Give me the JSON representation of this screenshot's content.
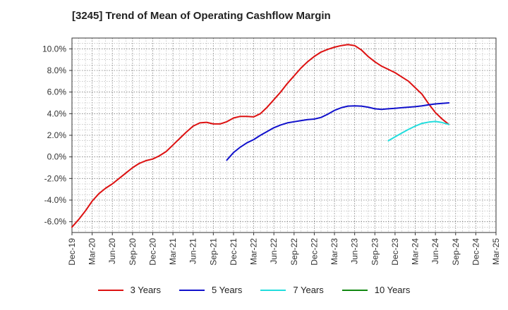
{
  "chart_data": {
    "type": "line",
    "title": "[3245]  Trend of Mean of Operating Cashflow Margin",
    "xlabel": "",
    "ylabel": "",
    "ylim": [
      -7,
      11
    ],
    "y_ticks": [
      -6,
      -4,
      -2,
      0,
      2,
      4,
      6,
      8,
      10
    ],
    "y_tick_labels": [
      "-6.0%",
      "-4.0%",
      "-2.0%",
      "0.0%",
      "2.0%",
      "4.0%",
      "6.0%",
      "8.0%",
      "10.0%"
    ],
    "x_tick_labels": [
      "Dec-19",
      "Mar-20",
      "Jun-20",
      "Sep-20",
      "Dec-20",
      "Mar-21",
      "Jun-21",
      "Sep-21",
      "Dec-21",
      "Mar-22",
      "Jun-22",
      "Sep-22",
      "Dec-22",
      "Mar-23",
      "Jun-23",
      "Sep-23",
      "Dec-23",
      "Mar-24",
      "Jun-24",
      "Sep-24",
      "Dec-24",
      "Mar-25"
    ],
    "grid": true,
    "legend_position": "bottom",
    "series": [
      {
        "name": "3 Years",
        "color": "#dd1111",
        "points": [
          [
            "Dec-19",
            -6.5
          ],
          [
            "Jan-20",
            -5.8
          ],
          [
            "Feb-20",
            -5.0
          ],
          [
            "Mar-20",
            -4.1
          ],
          [
            "Apr-20",
            -3.4
          ],
          [
            "May-20",
            -2.9
          ],
          [
            "Jun-20",
            -2.5
          ],
          [
            "Jul-20",
            -2.0
          ],
          [
            "Aug-20",
            -1.5
          ],
          [
            "Sep-20",
            -1.0
          ],
          [
            "Oct-20",
            -0.6
          ],
          [
            "Nov-20",
            -0.35
          ],
          [
            "Dec-20",
            -0.2
          ],
          [
            "Jan-21",
            0.1
          ],
          [
            "Feb-21",
            0.5
          ],
          [
            "Mar-21",
            1.1
          ],
          [
            "Apr-21",
            1.7
          ],
          [
            "May-21",
            2.3
          ],
          [
            "Jun-21",
            2.85
          ],
          [
            "Jul-21",
            3.15
          ],
          [
            "Aug-21",
            3.2
          ],
          [
            "Sep-21",
            3.05
          ],
          [
            "Oct-21",
            3.05
          ],
          [
            "Nov-21",
            3.25
          ],
          [
            "Dec-21",
            3.6
          ],
          [
            "Jan-22",
            3.75
          ],
          [
            "Feb-22",
            3.75
          ],
          [
            "Mar-22",
            3.7
          ],
          [
            "Apr-22",
            4.0
          ],
          [
            "May-22",
            4.6
          ],
          [
            "Jun-22",
            5.3
          ],
          [
            "Jul-22",
            6.0
          ],
          [
            "Aug-22",
            6.8
          ],
          [
            "Sep-22",
            7.5
          ],
          [
            "Oct-22",
            8.2
          ],
          [
            "Nov-22",
            8.8
          ],
          [
            "Dec-22",
            9.3
          ],
          [
            "Jan-23",
            9.7
          ],
          [
            "Feb-23",
            9.95
          ],
          [
            "Mar-23",
            10.15
          ],
          [
            "Apr-23",
            10.3
          ],
          [
            "May-23",
            10.4
          ],
          [
            "Jun-23",
            10.3
          ],
          [
            "Jul-23",
            9.9
          ],
          [
            "Aug-23",
            9.3
          ],
          [
            "Sep-23",
            8.8
          ],
          [
            "Oct-23",
            8.4
          ],
          [
            "Nov-23",
            8.1
          ],
          [
            "Dec-23",
            7.8
          ],
          [
            "Jan-24",
            7.4
          ],
          [
            "Feb-24",
            7.0
          ],
          [
            "Mar-24",
            6.4
          ],
          [
            "Apr-24",
            5.8
          ],
          [
            "May-24",
            4.9
          ],
          [
            "Jun-24",
            4.1
          ],
          [
            "Jul-24",
            3.5
          ],
          [
            "Aug-24",
            3.0
          ]
        ]
      },
      {
        "name": "5 Years",
        "color": "#1111cc",
        "points": [
          [
            "Nov-21",
            -0.3
          ],
          [
            "Dec-21",
            0.4
          ],
          [
            "Jan-22",
            0.9
          ],
          [
            "Feb-22",
            1.3
          ],
          [
            "Mar-22",
            1.6
          ],
          [
            "Apr-22",
            2.0
          ],
          [
            "May-22",
            2.35
          ],
          [
            "Jun-22",
            2.7
          ],
          [
            "Jul-22",
            2.95
          ],
          [
            "Aug-22",
            3.15
          ],
          [
            "Sep-22",
            3.25
          ],
          [
            "Oct-22",
            3.35
          ],
          [
            "Nov-22",
            3.45
          ],
          [
            "Dec-22",
            3.5
          ],
          [
            "Jan-23",
            3.65
          ],
          [
            "Feb-23",
            3.95
          ],
          [
            "Mar-23",
            4.3
          ],
          [
            "Apr-23",
            4.55
          ],
          [
            "May-23",
            4.7
          ],
          [
            "Jun-23",
            4.72
          ],
          [
            "Jul-23",
            4.7
          ],
          [
            "Aug-23",
            4.6
          ],
          [
            "Sep-23",
            4.45
          ],
          [
            "Oct-23",
            4.4
          ],
          [
            "Nov-23",
            4.45
          ],
          [
            "Dec-23",
            4.5
          ],
          [
            "Jan-24",
            4.55
          ],
          [
            "Feb-24",
            4.6
          ],
          [
            "Mar-24",
            4.65
          ],
          [
            "Apr-24",
            4.72
          ],
          [
            "May-24",
            4.82
          ],
          [
            "Jun-24",
            4.9
          ],
          [
            "Jul-24",
            4.95
          ],
          [
            "Aug-24",
            5.0
          ]
        ]
      },
      {
        "name": "7 Years",
        "color": "#22dddd",
        "points": [
          [
            "Nov-23",
            1.5
          ],
          [
            "Dec-23",
            1.85
          ],
          [
            "Jan-24",
            2.2
          ],
          [
            "Feb-24",
            2.55
          ],
          [
            "Mar-24",
            2.85
          ],
          [
            "Apr-24",
            3.1
          ],
          [
            "May-24",
            3.22
          ],
          [
            "Jun-24",
            3.28
          ],
          [
            "Jul-24",
            3.18
          ],
          [
            "Aug-24",
            3.0
          ]
        ]
      },
      {
        "name": "10 Years",
        "color": "#118811",
        "points": []
      }
    ]
  }
}
